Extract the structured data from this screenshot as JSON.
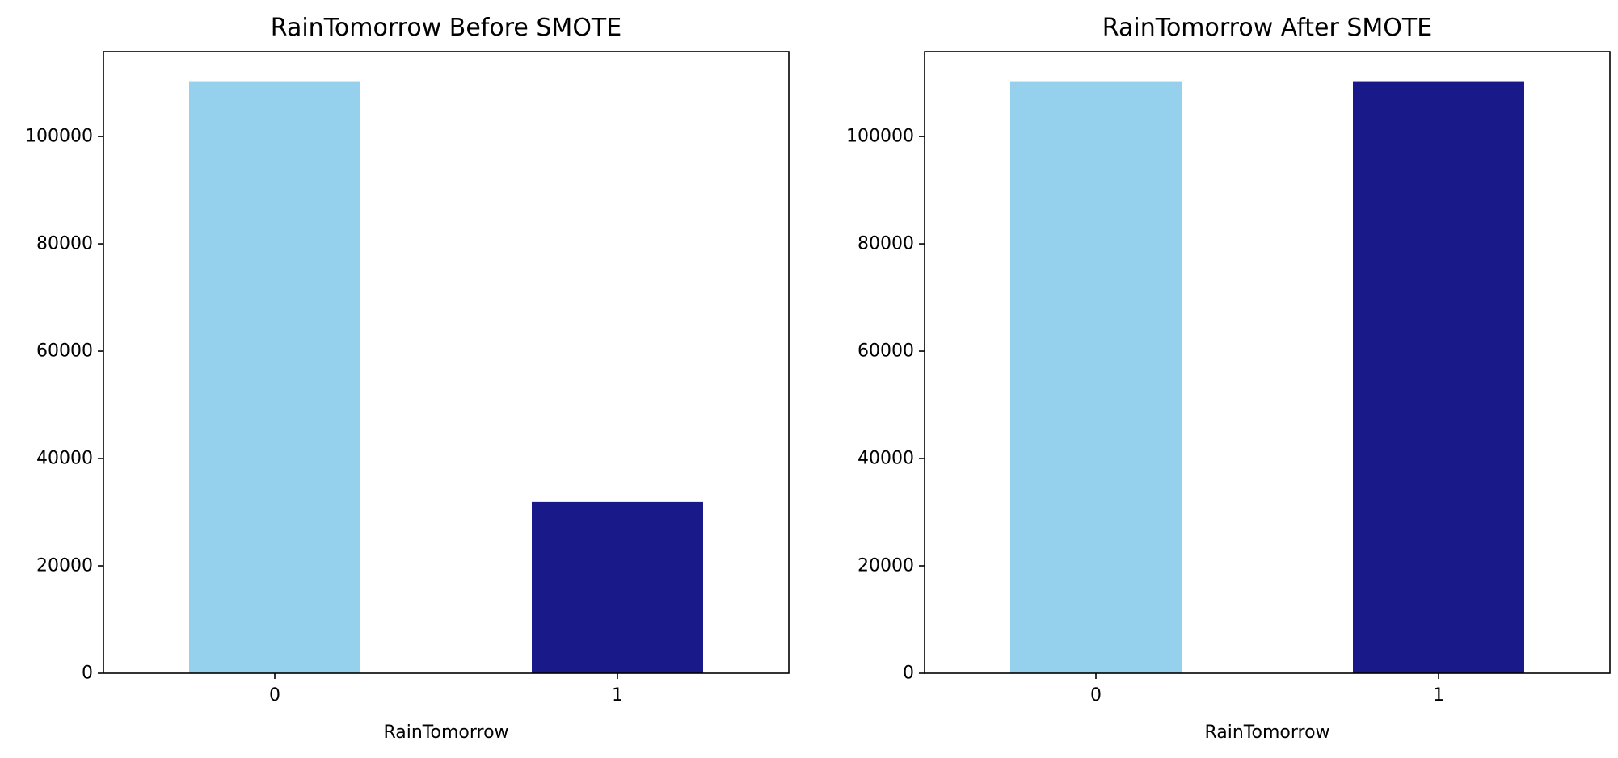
{
  "chart_data": [
    {
      "type": "bar",
      "title": "RainTomorrow Before SMOTE",
      "categories": [
        "0",
        "1"
      ],
      "values": [
        110300,
        31900
      ],
      "colors": [
        "#95d1ed",
        "#19198a"
      ],
      "xlabel": "RainTomorrow",
      "ylabel": "",
      "ylim": [
        0,
        115800
      ],
      "yticks": [
        0,
        20000,
        40000,
        60000,
        80000,
        100000
      ],
      "ytick_labels": [
        "0",
        "20000",
        "40000",
        "60000",
        "80000",
        "100000"
      ],
      "grid": false
    },
    {
      "type": "bar",
      "title": "RainTomorrow After SMOTE",
      "categories": [
        "0",
        "1"
      ],
      "values": [
        110300,
        110300
      ],
      "colors": [
        "#95d1ed",
        "#19198a"
      ],
      "xlabel": "RainTomorrow",
      "ylabel": "",
      "ylim": [
        0,
        115800
      ],
      "yticks": [
        0,
        20000,
        40000,
        60000,
        80000,
        100000
      ],
      "ytick_labels": [
        "0",
        "20000",
        "40000",
        "60000",
        "80000",
        "100000"
      ],
      "grid": false
    }
  ]
}
